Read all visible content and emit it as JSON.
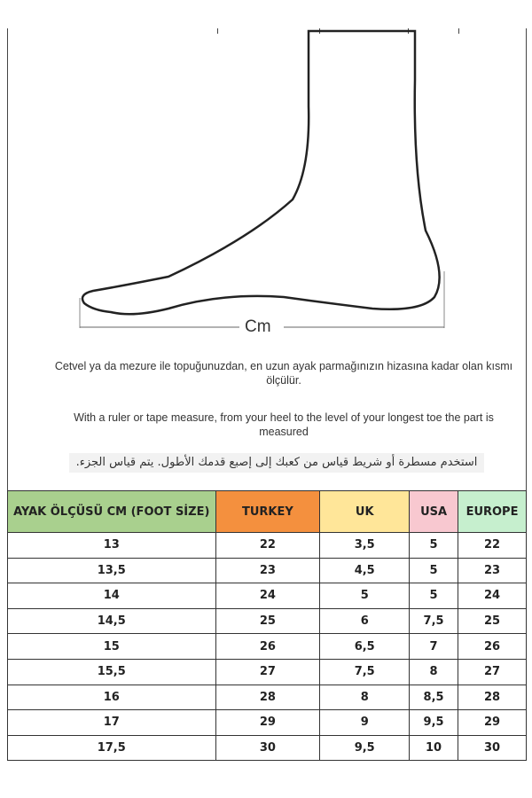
{
  "diagram": {
    "unit_label": "Cm"
  },
  "instructions": {
    "turkish": "Cetvel ya da mezure ile topuğunuzdan, en uzun ayak parmağınızın hizasına kadar olan kısmı ölçülür.",
    "english": "With a ruler or tape measure, from your heel to the level of your longest toe the part is measured",
    "arabic": "استخدم مسطرة أو شريط قياس من كعبك إلى إصبع قدمك الأطول. يتم قياس الجزء."
  },
  "table": {
    "headers": [
      {
        "label": "AYAK ÖLÇÜSÜ CM (FOOT SİZE)",
        "color": "#a9d08e"
      },
      {
        "label": "TURKEY",
        "color": "#f4903e"
      },
      {
        "label": "UK",
        "color": "#ffe699"
      },
      {
        "label": "USA",
        "color": "#f8c8d0"
      },
      {
        "label": "EUROPE",
        "color": "#c6efce"
      }
    ],
    "rows": [
      [
        "13",
        "22",
        "3,5",
        "5",
        "22"
      ],
      [
        "13,5",
        "23",
        "4,5",
        "5",
        "23"
      ],
      [
        "14",
        "24",
        "5",
        "5",
        "24"
      ],
      [
        "14,5",
        "25",
        "6",
        "7,5",
        "25"
      ],
      [
        "15",
        "26",
        "6,5",
        "7",
        "26"
      ],
      [
        "15,5",
        "27",
        "7,5",
        "8",
        "27"
      ],
      [
        "16",
        "28",
        "8",
        "8,5",
        "28"
      ],
      [
        "17",
        "29",
        "9",
        "9,5",
        "29"
      ],
      [
        "17,5",
        "30",
        "9,5",
        "10",
        "30"
      ]
    ]
  }
}
